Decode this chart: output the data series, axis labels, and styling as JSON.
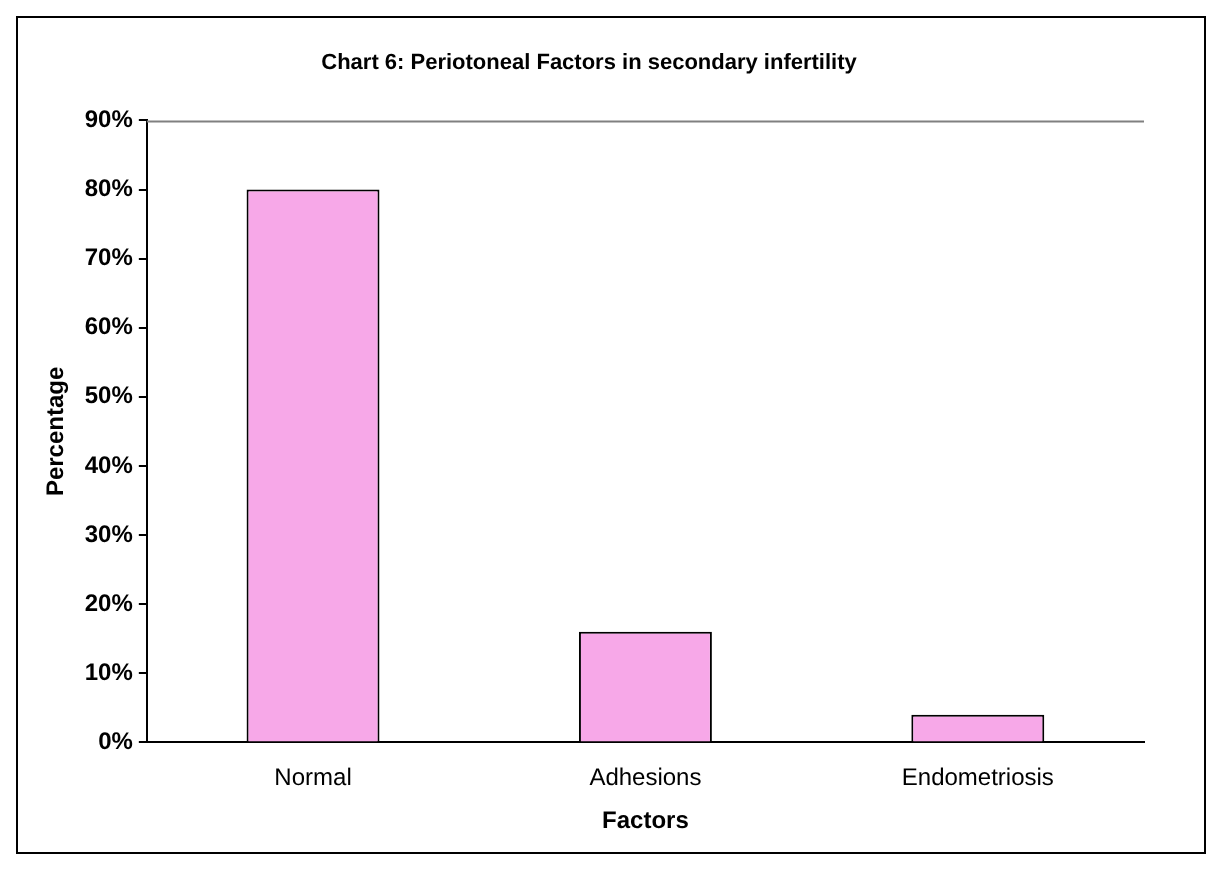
{
  "chart_data": {
    "type": "bar",
    "title": "Chart 6: Periotoneal Factors in secondary infertility",
    "xlabel": "Factors",
    "ylabel": "Percentage",
    "categories": [
      "Normal",
      "Adhesions",
      "Endometriosis"
    ],
    "values": [
      80,
      16,
      4
    ],
    "color": "#f7a8e8",
    "ylim": [
      0,
      90
    ],
    "yticks": [
      {
        "value": 0,
        "label": "0%"
      },
      {
        "value": 10,
        "label": "10%"
      },
      {
        "value": 20,
        "label": "20%"
      },
      {
        "value": 30,
        "label": "30%"
      },
      {
        "value": 40,
        "label": "40%"
      },
      {
        "value": 50,
        "label": "50%"
      },
      {
        "value": 60,
        "label": "60%"
      },
      {
        "value": 70,
        "label": "70%"
      },
      {
        "value": 80,
        "label": "80%"
      },
      {
        "value": 90,
        "label": "90%"
      }
    ],
    "grid": false,
    "legend": false
  }
}
